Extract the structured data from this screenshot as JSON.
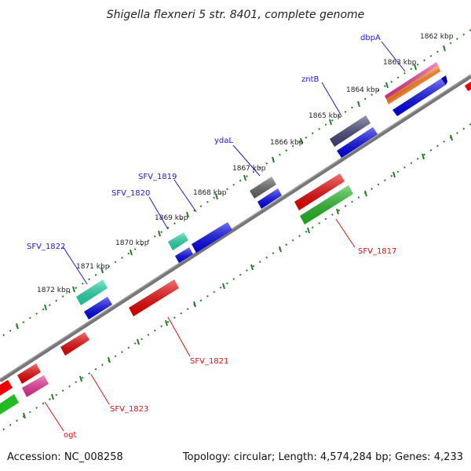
{
  "title": "Shigella flexneri 5 str. 8401, complete genome",
  "accession": "Accession: NC_008258",
  "summary": "Topology: circular; Length: 4,574,284 bp; Genes: 4,233",
  "ticks": [
    "1862 kbp",
    "1863 kbp",
    "1864 kbp",
    "1865 kbp",
    "1866 kbp",
    "1867 kbp",
    "1868 kbp",
    "1869 kbp",
    "1870 kbp",
    "1871 kbp",
    "1872 kbp"
  ],
  "genes_top": [
    "dbpA",
    "zntB",
    "ydaL",
    "SFV_1819",
    "SFV_1820",
    "SFV_1822"
  ],
  "genes_bottom": [
    "SFV_1817",
    "SFV_1821",
    "SFV_1823",
    "ogt"
  ],
  "colors": {
    "forward": "#0000ee",
    "reverse": "#ee0000",
    "green": "#22bb22",
    "teal": "#22ddaa",
    "pink": "#ee3399",
    "slate": "#44447a",
    "grey": "#666666",
    "backbone": "#777777",
    "tick": "#2a7a2a"
  }
}
